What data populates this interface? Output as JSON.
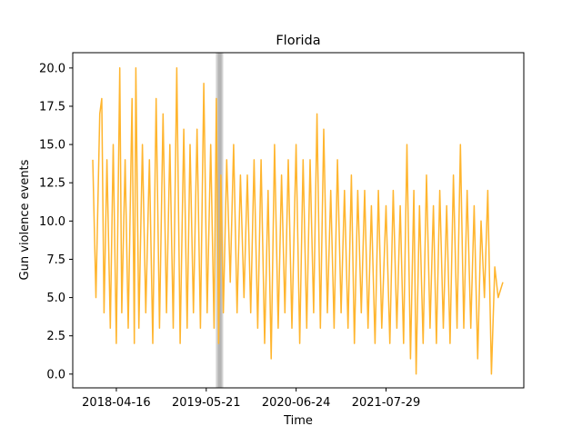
{
  "chart_data": {
    "type": "line",
    "title": "Florida",
    "xlabel": "Time",
    "ylabel": "Gun violence events",
    "x_range": [
      "2018-01-01",
      "2022-12-31"
    ],
    "x_ticks": [
      "2018-04-16",
      "2019-05-21",
      "2020-06-24",
      "2021-07-29"
    ],
    "ylim": [
      -0.9,
      21.0
    ],
    "y_ticks": [
      "0.0",
      "2.5",
      "5.0",
      "7.5",
      "10.0",
      "12.5",
      "15.0",
      "17.5",
      "20.0"
    ],
    "grid": false,
    "legend": "none",
    "series": [
      {
        "color": "#FFB52E",
        "points": [
          [
            "2018-01-01",
            14
          ],
          [
            "2018-01-15",
            5
          ],
          [
            "2018-02-01",
            17
          ],
          [
            "2018-02-10",
            18
          ],
          [
            "2018-02-20",
            4
          ],
          [
            "2018-03-05",
            14
          ],
          [
            "2018-03-20",
            3
          ],
          [
            "2018-04-02",
            15
          ],
          [
            "2018-04-16",
            2
          ],
          [
            "2018-05-01",
            20
          ],
          [
            "2018-05-10",
            4
          ],
          [
            "2018-05-25",
            14
          ],
          [
            "2018-06-08",
            3
          ],
          [
            "2018-06-25",
            18
          ],
          [
            "2018-07-05",
            2
          ],
          [
            "2018-07-12",
            20
          ],
          [
            "2018-07-25",
            3
          ],
          [
            "2018-08-10",
            15
          ],
          [
            "2018-08-25",
            4
          ],
          [
            "2018-09-10",
            14
          ],
          [
            "2018-09-25",
            2
          ],
          [
            "2018-10-10",
            18
          ],
          [
            "2018-10-25",
            3
          ],
          [
            "2018-11-10",
            17
          ],
          [
            "2018-11-25",
            4
          ],
          [
            "2018-12-10",
            15
          ],
          [
            "2018-12-25",
            3
          ],
          [
            "2019-01-10",
            20
          ],
          [
            "2019-01-25",
            2
          ],
          [
            "2019-02-10",
            16
          ],
          [
            "2019-02-25",
            3
          ],
          [
            "2019-03-10",
            15
          ],
          [
            "2019-03-25",
            4
          ],
          [
            "2019-04-10",
            16
          ],
          [
            "2019-04-25",
            3
          ],
          [
            "2019-05-10",
            19
          ],
          [
            "2019-05-25",
            4
          ],
          [
            "2019-06-10",
            15
          ],
          [
            "2019-06-25",
            3
          ],
          [
            "2019-07-05",
            18
          ],
          [
            "2019-07-15",
            2
          ],
          [
            "2019-07-25",
            13
          ],
          [
            "2019-08-05",
            4
          ],
          [
            "2019-08-20",
            14
          ],
          [
            "2019-09-05",
            6
          ],
          [
            "2019-09-20",
            15
          ],
          [
            "2019-10-05",
            4
          ],
          [
            "2019-10-20",
            13
          ],
          [
            "2019-11-05",
            5
          ],
          [
            "2019-11-20",
            13
          ],
          [
            "2019-12-05",
            4
          ],
          [
            "2019-12-20",
            14
          ],
          [
            "2020-01-05",
            3
          ],
          [
            "2020-01-20",
            14
          ],
          [
            "2020-02-05",
            2
          ],
          [
            "2020-02-20",
            12
          ],
          [
            "2020-03-05",
            1
          ],
          [
            "2020-03-20",
            15
          ],
          [
            "2020-04-05",
            3
          ],
          [
            "2020-04-20",
            13
          ],
          [
            "2020-05-05",
            4
          ],
          [
            "2020-05-20",
            14
          ],
          [
            "2020-06-05",
            3
          ],
          [
            "2020-06-24",
            15
          ],
          [
            "2020-07-10",
            2
          ],
          [
            "2020-07-25",
            14
          ],
          [
            "2020-08-10",
            3
          ],
          [
            "2020-08-25",
            14
          ],
          [
            "2020-09-10",
            4
          ],
          [
            "2020-09-25",
            17
          ],
          [
            "2020-10-10",
            3
          ],
          [
            "2020-10-25",
            16
          ],
          [
            "2020-11-10",
            4
          ],
          [
            "2020-11-25",
            12
          ],
          [
            "2020-12-10",
            3
          ],
          [
            "2020-12-25",
            14
          ],
          [
            "2021-01-10",
            4
          ],
          [
            "2021-01-25",
            12
          ],
          [
            "2021-02-10",
            3
          ],
          [
            "2021-02-25",
            13
          ],
          [
            "2021-03-10",
            2
          ],
          [
            "2021-03-25",
            12
          ],
          [
            "2021-04-10",
            4
          ],
          [
            "2021-04-25",
            12
          ],
          [
            "2021-05-10",
            3
          ],
          [
            "2021-05-25",
            11
          ],
          [
            "2021-06-10",
            2
          ],
          [
            "2021-06-25",
            12
          ],
          [
            "2021-07-10",
            3
          ],
          [
            "2021-07-29",
            11
          ],
          [
            "2021-08-15",
            2
          ],
          [
            "2021-08-30",
            12
          ],
          [
            "2021-09-15",
            3
          ],
          [
            "2021-09-30",
            11
          ],
          [
            "2021-10-15",
            2
          ],
          [
            "2021-10-30",
            15
          ],
          [
            "2021-11-15",
            1
          ],
          [
            "2021-11-30",
            12
          ],
          [
            "2021-12-10",
            0
          ],
          [
            "2021-12-25",
            11
          ],
          [
            "2022-01-10",
            2
          ],
          [
            "2022-01-25",
            13
          ],
          [
            "2022-02-10",
            3
          ],
          [
            "2022-02-25",
            11
          ],
          [
            "2022-03-10",
            2
          ],
          [
            "2022-03-25",
            12
          ],
          [
            "2022-04-10",
            3
          ],
          [
            "2022-04-25",
            11
          ],
          [
            "2022-05-10",
            2
          ],
          [
            "2022-05-25",
            13
          ],
          [
            "2022-06-10",
            3
          ],
          [
            "2022-06-25",
            15
          ],
          [
            "2022-07-10",
            3
          ],
          [
            "2022-07-25",
            12
          ],
          [
            "2022-08-10",
            3
          ],
          [
            "2022-08-25",
            11
          ],
          [
            "2022-09-10",
            1
          ],
          [
            "2022-09-25",
            10
          ],
          [
            "2022-10-10",
            5
          ],
          [
            "2022-10-25",
            12
          ],
          [
            "2022-11-10",
            0
          ],
          [
            "2022-11-25",
            7
          ],
          [
            "2022-12-10",
            5
          ],
          [
            "2022-12-31",
            6
          ]
        ]
      }
    ],
    "shaded_bands": [
      {
        "start": "2019-07-01",
        "end": "2019-08-06",
        "color": "#000000",
        "alpha": 0.1
      },
      {
        "start": "2019-07-06",
        "end": "2019-08-02",
        "color": "#000000",
        "alpha": 0.1
      },
      {
        "start": "2019-07-12",
        "end": "2019-07-28",
        "color": "#000000",
        "alpha": 0.12
      }
    ]
  }
}
